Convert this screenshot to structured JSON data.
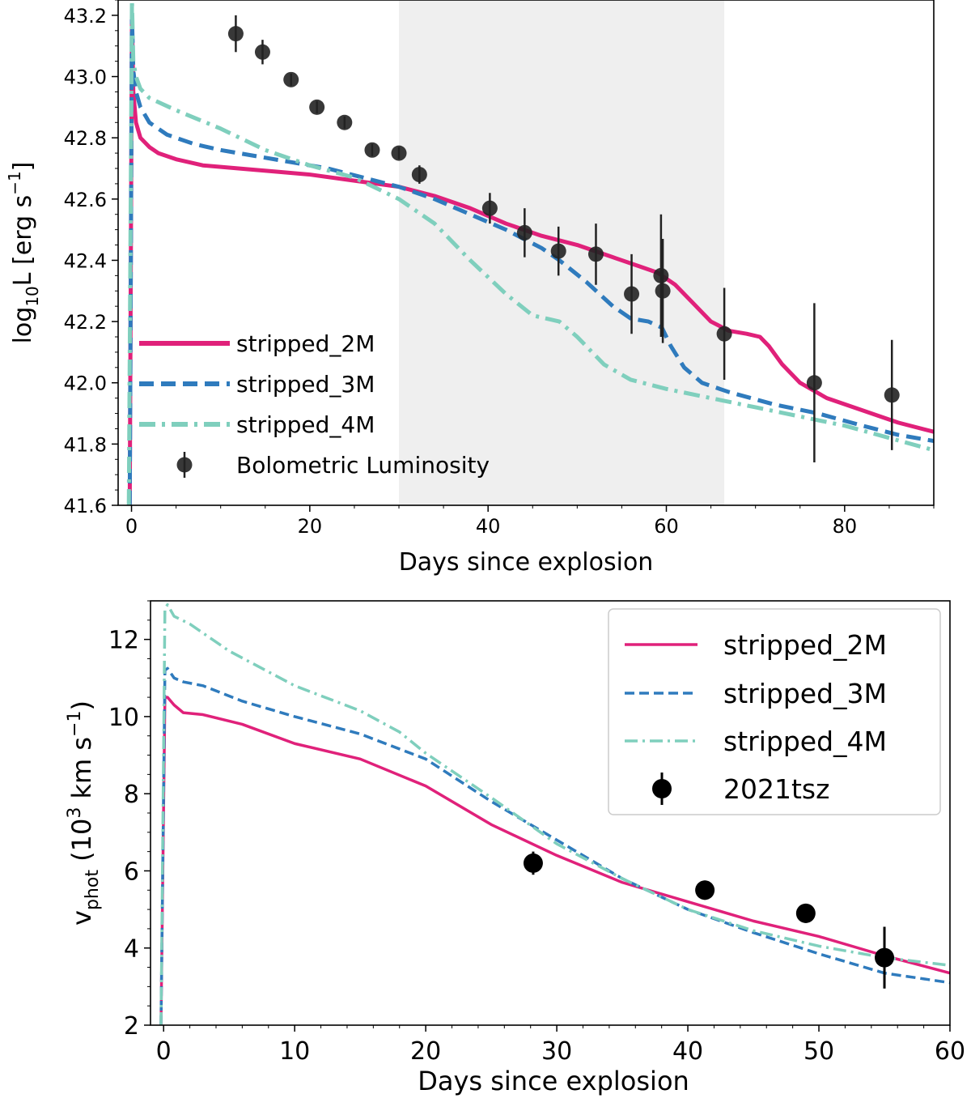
{
  "colors": {
    "stripped_2M": "#e0217a",
    "stripped_3M": "#2f7bbd",
    "stripped_4M": "#7fcfbd",
    "obs": "#222222",
    "shade": "#efefef"
  },
  "chart_data": [
    {
      "type": "line",
      "xlabel": "Days since explosion",
      "ylabel_main": "log",
      "ylabel_sub": "10",
      "ylabel_rest": "L [erg s",
      "ylabel_sup": "−1",
      "ylabel_end": "]",
      "xlim": [
        -1.5,
        90
      ],
      "ylim": [
        41.6,
        43.25
      ],
      "xticks": [
        0,
        20,
        40,
        60,
        80
      ],
      "xtick_labels": [
        "0",
        "20",
        "40",
        "60",
        "80"
      ],
      "yticks": [
        41.6,
        41.8,
        42.0,
        42.2,
        42.4,
        42.6,
        42.8,
        43.0,
        43.2
      ],
      "ytick_labels": [
        "41.6",
        "41.8",
        "42.0",
        "42.2",
        "42.4",
        "42.6",
        "42.8",
        "43.0",
        "43.2"
      ],
      "shaded_region": [
        30,
        66.5
      ],
      "legend_position": "lower-left",
      "series": [
        {
          "name": "stripped_2M",
          "style": "solid",
          "x": [
            -0.2,
            0.05,
            0.2,
            0.5,
            1,
            2,
            3,
            5,
            8,
            12,
            16,
            20,
            25,
            30,
            34,
            38,
            42,
            46,
            50,
            54,
            57,
            59,
            61,
            63,
            65,
            67,
            69,
            70.5,
            71.5,
            73,
            75,
            78,
            82,
            86,
            90
          ],
          "y": [
            41.6,
            43.2,
            42.95,
            42.85,
            42.8,
            42.77,
            42.75,
            42.73,
            42.71,
            42.7,
            42.69,
            42.68,
            42.66,
            42.64,
            42.61,
            42.57,
            42.52,
            42.48,
            42.45,
            42.41,
            42.38,
            42.36,
            42.32,
            42.26,
            42.2,
            42.17,
            42.16,
            42.15,
            42.12,
            42.06,
            42.0,
            41.95,
            41.91,
            41.87,
            41.84
          ]
        },
        {
          "name": "stripped_3M",
          "style": "dashed",
          "x": [
            -0.2,
            0.05,
            0.2,
            0.5,
            1,
            2,
            4,
            7,
            10,
            14,
            18,
            22,
            26,
            30,
            34,
            38,
            42,
            46,
            48,
            51,
            54,
            56,
            58,
            59.5,
            60.5,
            62,
            64,
            67,
            72,
            77,
            82,
            86,
            90
          ],
          "y": [
            41.6,
            43.2,
            43.02,
            42.95,
            42.9,
            42.85,
            42.81,
            42.78,
            42.76,
            42.74,
            42.72,
            42.7,
            42.67,
            42.64,
            42.6,
            42.55,
            42.5,
            42.44,
            42.4,
            42.33,
            42.25,
            42.21,
            42.2,
            42.18,
            42.12,
            42.05,
            42.0,
            41.97,
            41.93,
            41.9,
            41.86,
            41.83,
            41.81
          ]
        },
        {
          "name": "stripped_4M",
          "style": "dashdot",
          "x": [
            -0.3,
            0.05,
            0.2,
            0.5,
            1,
            2,
            5,
            10,
            15,
            20,
            25,
            30,
            34,
            38,
            42,
            45,
            48,
            50,
            53,
            56,
            60,
            65,
            70,
            75,
            80,
            85,
            90
          ],
          "y": [
            41.6,
            43.25,
            43.05,
            43.0,
            42.96,
            42.93,
            42.89,
            42.83,
            42.76,
            42.71,
            42.67,
            42.6,
            42.52,
            42.4,
            42.29,
            42.22,
            42.2,
            42.15,
            42.06,
            42.01,
            41.98,
            41.95,
            41.92,
            41.89,
            41.86,
            41.82,
            41.78
          ]
        }
      ],
      "observations": {
        "name": "Bolometric Luminosity",
        "x": [
          11.7,
          14.7,
          17.9,
          20.8,
          23.9,
          27,
          30,
          32.3,
          40.2,
          44.1,
          47.9,
          52.1,
          56.1,
          59.4,
          59.6,
          66.5,
          76.6,
          85.3
        ],
        "y": [
          43.14,
          43.08,
          42.99,
          42.9,
          42.85,
          42.76,
          42.75,
          42.68,
          42.57,
          42.49,
          42.43,
          42.42,
          42.29,
          42.35,
          42.3,
          42.16,
          42.0,
          41.96
        ],
        "yerr": [
          0.06,
          0.04,
          0.02,
          0.02,
          0.02,
          0.02,
          0.02,
          0.03,
          0.05,
          0.08,
          0.08,
          0.1,
          0.13,
          0.2,
          0.17,
          0.15,
          0.26,
          0.18
        ]
      }
    },
    {
      "type": "line",
      "xlabel": "Days since explosion",
      "ylabel_main": "v",
      "ylabel_sub": "phot",
      "ylabel_rest": " (10",
      "ylabel_sup": "3",
      "ylabel_rest2": " km s",
      "ylabel_sup2": "−1",
      "ylabel_end": ")",
      "xlim": [
        -1,
        60
      ],
      "ylim": [
        2,
        13
      ],
      "xticks": [
        0,
        10,
        20,
        30,
        40,
        50,
        60
      ],
      "xtick_labels": [
        "0",
        "10",
        "20",
        "30",
        "40",
        "50",
        "60"
      ],
      "yticks": [
        2,
        4,
        6,
        8,
        10,
        12
      ],
      "ytick_labels": [
        "2",
        "4",
        "6",
        "8",
        "10",
        "12"
      ],
      "legend_position": "upper-right",
      "series": [
        {
          "name": "stripped_2M",
          "style": "solid",
          "x": [
            -0.2,
            0.1,
            0.3,
            0.8,
            1.5,
            3,
            6,
            10,
            15,
            20,
            25,
            30,
            35,
            40,
            45,
            50,
            55,
            60
          ],
          "y": [
            2,
            10.5,
            10.5,
            10.3,
            10.1,
            10.05,
            9.8,
            9.3,
            8.9,
            8.2,
            7.2,
            6.4,
            5.7,
            5.2,
            4.7,
            4.3,
            3.8,
            3.35
          ]
        },
        {
          "name": "stripped_3M",
          "style": "dashed",
          "x": [
            -0.2,
            0.1,
            0.3,
            0.8,
            1.5,
            3,
            6,
            10,
            15,
            20,
            25,
            30,
            35,
            40,
            45,
            50,
            55,
            60
          ],
          "y": [
            2,
            11.2,
            11.25,
            11.0,
            10.9,
            10.8,
            10.4,
            10.0,
            9.55,
            8.9,
            7.8,
            6.8,
            5.8,
            5.0,
            4.4,
            3.85,
            3.35,
            3.1
          ]
        },
        {
          "name": "stripped_4M",
          "style": "dashdot",
          "x": [
            -0.2,
            0.1,
            0.3,
            0.8,
            2,
            5,
            10,
            15,
            18,
            20,
            25,
            30,
            35,
            40,
            45,
            50,
            55,
            60
          ],
          "y": [
            2,
            12.8,
            12.9,
            12.6,
            12.4,
            11.7,
            10.8,
            10.15,
            9.6,
            9.05,
            7.9,
            6.7,
            5.8,
            5.0,
            4.45,
            4.05,
            3.75,
            3.55
          ]
        }
      ],
      "observations": {
        "name": "2021tsz",
        "x": [
          28.2,
          41.3,
          49.0,
          55.0
        ],
        "y": [
          6.2,
          5.5,
          4.9,
          3.75
        ],
        "yerr": [
          0.3,
          0.25,
          0.25,
          0.8
        ]
      }
    }
  ]
}
